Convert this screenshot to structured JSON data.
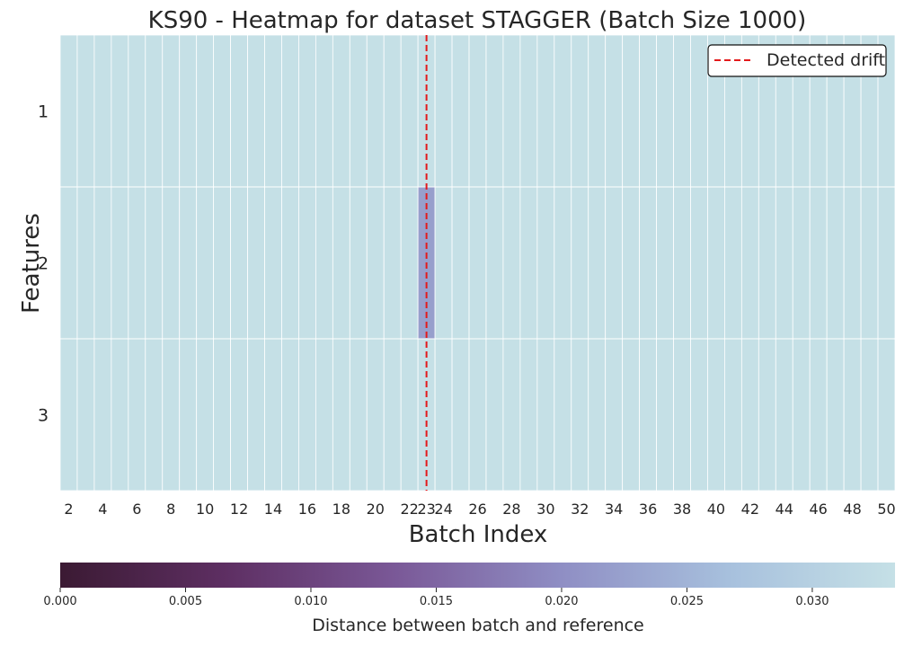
{
  "chart_data": {
    "type": "heatmap",
    "title": "KS90 - Heatmap for dataset STAGGER (Batch Size 1000)",
    "xlabel": "Batch Index",
    "ylabel": "Features",
    "x_categories": [
      2,
      3,
      4,
      5,
      6,
      7,
      8,
      9,
      10,
      11,
      12,
      13,
      14,
      15,
      16,
      17,
      18,
      19,
      20,
      21,
      22,
      23,
      24,
      25,
      26,
      27,
      28,
      29,
      30,
      31,
      32,
      33,
      34,
      35,
      36,
      37,
      38,
      39,
      40,
      41,
      42,
      43,
      44,
      45,
      46,
      47,
      48,
      49,
      50
    ],
    "x_tick_labels": [
      "2",
      "4",
      "6",
      "8",
      "10",
      "12",
      "14",
      "16",
      "18",
      "20",
      "22",
      "23",
      "24",
      "26",
      "28",
      "30",
      "32",
      "34",
      "36",
      "38",
      "40",
      "42",
      "44",
      "46",
      "48",
      "50"
    ],
    "y_categories": [
      "1",
      "2",
      "3"
    ],
    "default_value": 0.0333,
    "cell_overrides": [
      {
        "feature": "2",
        "batch": 23,
        "value": 0.0222
      }
    ],
    "colorbar": {
      "label": "Distance between batch and reference",
      "min": 0.0,
      "max": 0.0333,
      "tick_values": [
        0.0,
        0.005,
        0.01,
        0.015,
        0.02,
        0.025,
        0.03
      ],
      "tick_labels": [
        "0.000",
        "0.005",
        "0.010",
        "0.015",
        "0.020",
        "0.025",
        "0.030"
      ],
      "colormap_stops": [
        "#3b1a33",
        "#5e2f63",
        "#7a5897",
        "#8f8ec4",
        "#a7c0dd",
        "#c5e0e6"
      ]
    },
    "drift_line": {
      "batch": 23,
      "color": "#e31a1c",
      "legend_label": "Detected drift"
    },
    "legend_position": "top-right",
    "grid": true
  }
}
